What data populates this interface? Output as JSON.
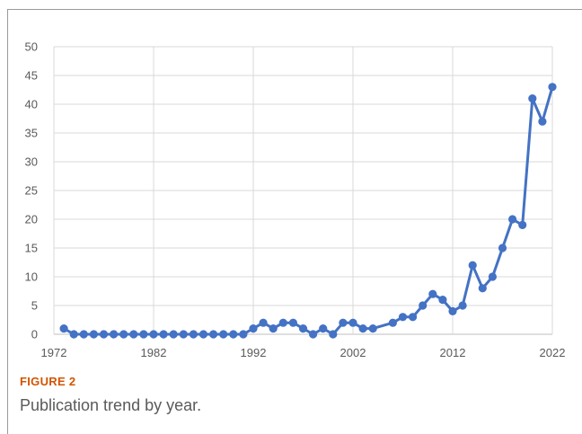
{
  "figure": {
    "label": "FIGURE 2",
    "caption": "Publication trend by year."
  },
  "colors": {
    "line": "#4472c4",
    "grid": "#d9d9d9",
    "axis": "#bfbfbf",
    "figure_label": "#d35400"
  },
  "chart_data": {
    "type": "line",
    "xlim": [
      1972,
      2022
    ],
    "ylim": [
      0,
      50
    ],
    "xticks": [
      1972,
      1982,
      1992,
      2002,
      2012,
      2022
    ],
    "yticks": [
      0,
      5,
      10,
      15,
      20,
      25,
      30,
      35,
      40,
      45,
      50
    ],
    "grid": true,
    "markers": true,
    "series": [
      {
        "x": [
          1973,
          1974,
          1975,
          1976,
          1977,
          1978,
          1979,
          1980,
          1981,
          1982,
          1983,
          1984,
          1985,
          1986,
          1987,
          1988,
          1989,
          1990,
          1991,
          1992,
          1993,
          1994,
          1995,
          1996,
          1997,
          1998,
          1999,
          2000,
          2001,
          2002,
          2003,
          2004,
          2006,
          2007,
          2008,
          2009,
          2010,
          2011,
          2012,
          2013,
          2014,
          2015,
          2016,
          2017,
          2018,
          2019,
          2020,
          2021,
          2022
        ],
        "y": [
          1,
          0,
          0,
          0,
          0,
          0,
          0,
          0,
          0,
          0,
          0,
          0,
          0,
          0,
          0,
          0,
          0,
          0,
          0,
          1,
          2,
          1,
          2,
          2,
          1,
          0,
          1,
          0,
          2,
          2,
          1,
          1,
          2,
          3,
          3,
          5,
          7,
          6,
          4,
          5,
          12,
          8,
          10,
          15,
          20,
          19,
          41,
          37,
          43
        ]
      }
    ]
  }
}
